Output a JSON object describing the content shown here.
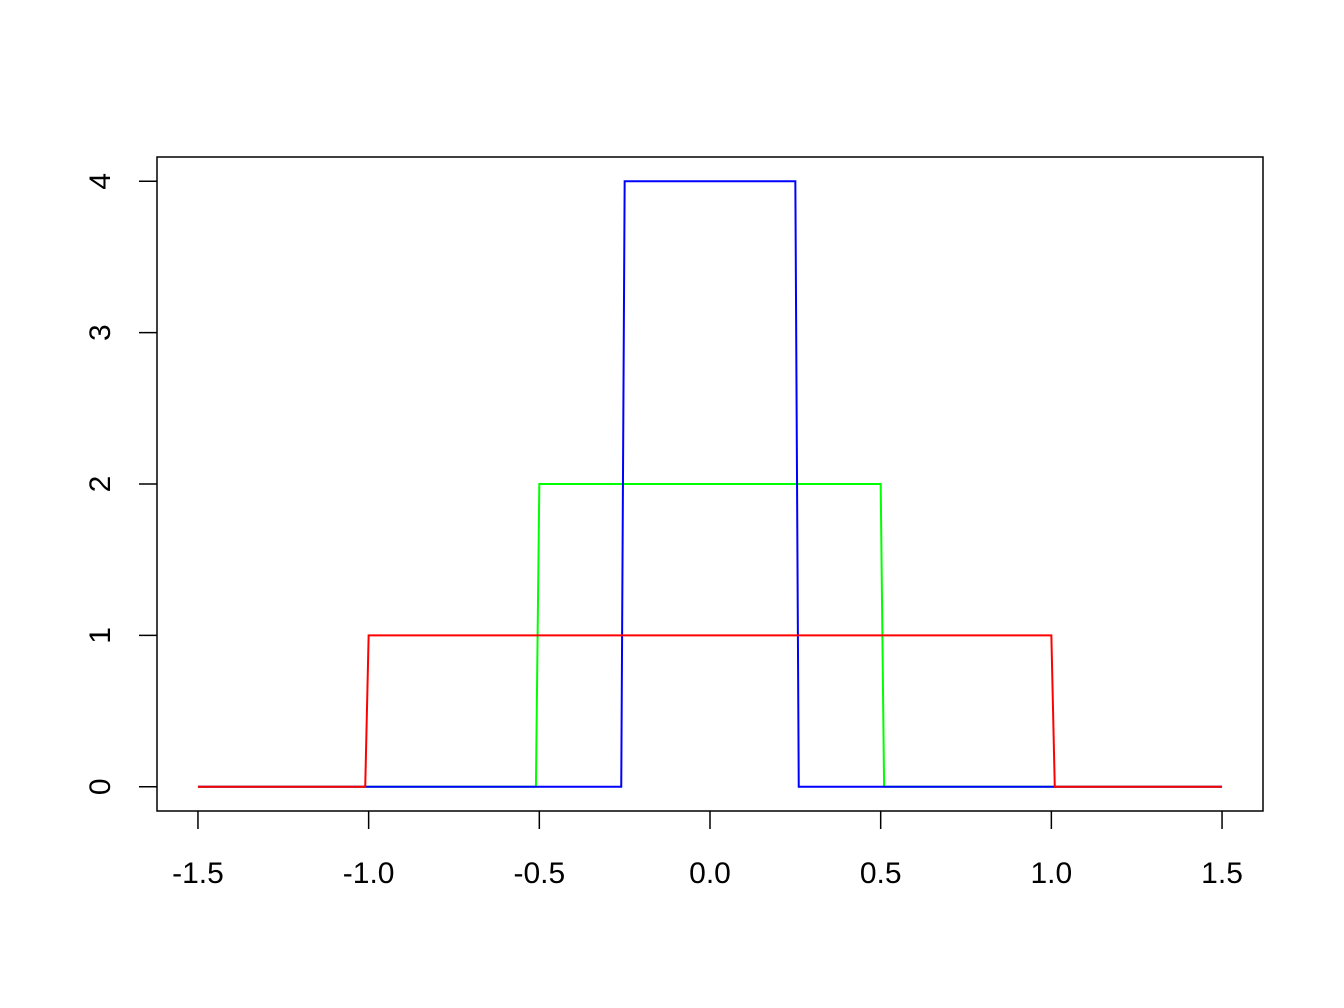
{
  "chart_data": {
    "type": "line",
    "x": [
      -1.5,
      -1.01,
      -1.0,
      -0.51,
      -0.5,
      -0.26,
      -0.25,
      0.25,
      0.26,
      0.5,
      0.51,
      1.0,
      1.01,
      1.5
    ],
    "series": [
      {
        "color": "#00ff00",
        "values": [
          0,
          0,
          0,
          0,
          2,
          2,
          2,
          2,
          2,
          2,
          0,
          0,
          0,
          0
        ]
      },
      {
        "color": "#0000ff",
        "values": [
          0,
          0,
          0,
          0,
          0,
          0,
          4,
          4,
          0,
          0,
          0,
          0,
          0,
          0
        ]
      },
      {
        "color": "#ff0000",
        "values": [
          0,
          0,
          1,
          1,
          1,
          1,
          1,
          1,
          1,
          1,
          1,
          1,
          0,
          0
        ]
      }
    ],
    "xlim": [
      -1.62,
      1.62
    ],
    "ylim": [
      -0.16,
      4.16
    ],
    "xticks": [
      {
        "value": -1.5,
        "label": "-1.5"
      },
      {
        "value": -1,
        "label": "-1.0"
      },
      -0.5,
      {
        "value": 0,
        "label": "0.0"
      },
      0.5,
      {
        "value": 1,
        "label": "1.0"
      },
      1.5
    ],
    "yticks": [
      0,
      1,
      2,
      3,
      4
    ]
  }
}
